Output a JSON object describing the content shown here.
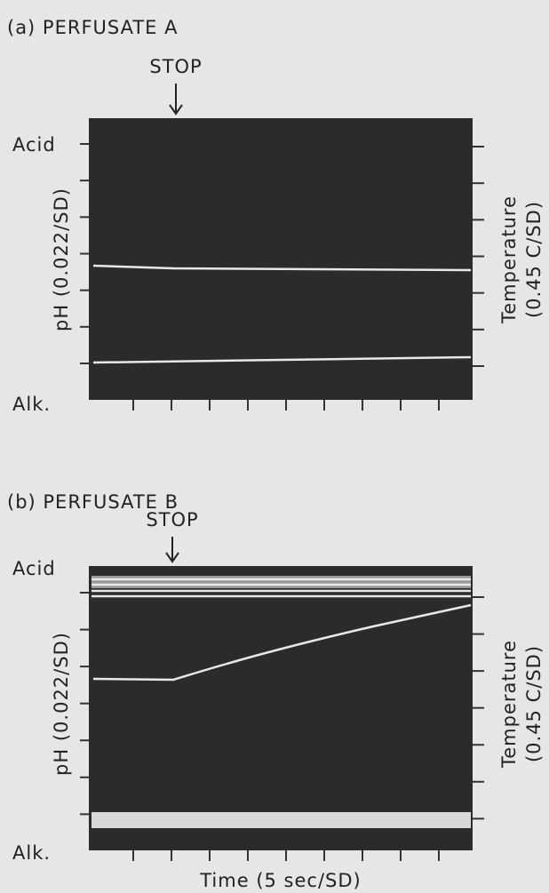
{
  "panels": [
    {
      "title": "(a) PERFUSATE A",
      "marker": "STOP",
      "top_label": "Acid",
      "bottom_label": "Alk.",
      "left_axis": "pH (0.022/SD)",
      "right_axis": [
        "Temperature",
        "(0.45 C/SD)"
      ]
    },
    {
      "title": "(b) PERFUSATE B",
      "marker": "STOP",
      "top_label": "Acid",
      "bottom_label": "Alk.",
      "left_axis": "pH (0.022/SD)",
      "right_axis": [
        "Temperature",
        "(0.45 C/SD)"
      ]
    }
  ],
  "x_axis": "Time (5 sec/SD)"
}
